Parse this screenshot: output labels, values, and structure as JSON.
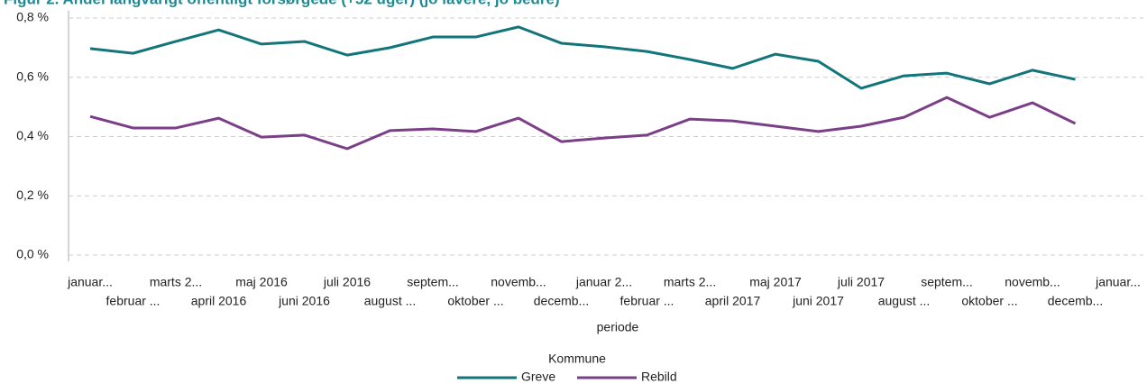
{
  "chart_data": {
    "type": "line",
    "title": "Figur 2. Andel langvarigt offentligt forsørgede (+52 uger) (jo lavere, jo bedre)",
    "x_label": "periode",
    "legend_title": "Kommune",
    "categories": [
      "januar...",
      "februar ...",
      "marts 2...",
      "april 2016",
      "maj 2016",
      "juni 2016",
      "juli 2016",
      "august ...",
      "septem...",
      "oktober ...",
      "novemb...",
      "decemb...",
      "januar 2...",
      "februar ...",
      "marts 2...",
      "april 2017",
      "maj 2017",
      "juni 2017",
      "juli 2017",
      "august ...",
      "septem...",
      "oktober ...",
      "novemb...",
      "decemb...",
      "januar..."
    ],
    "series": [
      {
        "name": "Greve",
        "color": "#12757a",
        "values": [
          0.697,
          0.681,
          0.721,
          0.76,
          0.712,
          0.721,
          0.675,
          0.7,
          0.736,
          0.736,
          0.77,
          0.715,
          0.703,
          0.687,
          0.66,
          0.63,
          0.678,
          0.654,
          0.563,
          0.605,
          0.614,
          0.578,
          0.624,
          0.593,
          null
        ]
      },
      {
        "name": "Rebild",
        "color": "#7b3f87",
        "values": [
          0.468,
          0.429,
          0.429,
          0.462,
          0.398,
          0.405,
          0.359,
          0.42,
          0.426,
          0.417,
          0.462,
          0.383,
          0.395,
          0.405,
          0.459,
          0.453,
          0.435,
          0.417,
          0.435,
          0.465,
          0.532,
          0.465,
          0.514,
          0.444,
          null
        ]
      }
    ],
    "ylim": [
      0,
      0.8
    ],
    "yticks": [
      {
        "value": 0,
        "label": "0,0 %"
      },
      {
        "value": 0.2,
        "label": "0,2 %"
      },
      {
        "value": 0.4,
        "label": "0,4 %"
      },
      {
        "value": 0.6,
        "label": "0,6 %"
      },
      {
        "value": 0.8,
        "label": "0,8 %"
      }
    ],
    "grid": true
  }
}
